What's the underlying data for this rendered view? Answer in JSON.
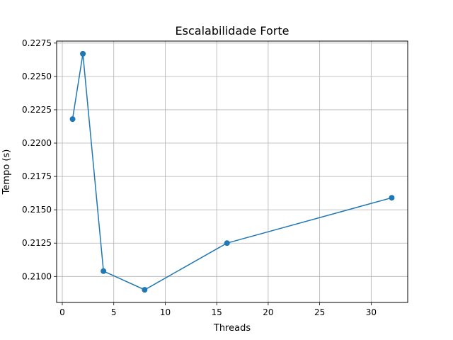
{
  "chart_data": {
    "type": "line",
    "title": "Escalabilidade Forte",
    "xlabel": "Threads",
    "ylabel": "Tempo (s)",
    "xlim": [
      -0.55,
      33.55
    ],
    "ylim": [
      0.20805,
      0.22765
    ],
    "xticks": [
      0,
      5,
      10,
      15,
      20,
      25,
      30
    ],
    "xtick_labels": [
      "0",
      "5",
      "10",
      "15",
      "20",
      "25",
      "30"
    ],
    "yticks": [
      0.21,
      0.2125,
      0.215,
      0.2175,
      0.22,
      0.2225,
      0.225,
      0.2275
    ],
    "ytick_labels": [
      "0.2100",
      "0.2125",
      "0.2150",
      "0.2175",
      "0.2200",
      "0.2225",
      "0.2250",
      "0.2275"
    ],
    "grid": true,
    "series": [
      {
        "color": "#1f77b4",
        "marker": "circle",
        "x": [
          1,
          2,
          4,
          8,
          16,
          32
        ],
        "y": [
          0.2218,
          0.2267,
          0.2104,
          0.209,
          0.2125,
          0.2159
        ]
      }
    ]
  }
}
